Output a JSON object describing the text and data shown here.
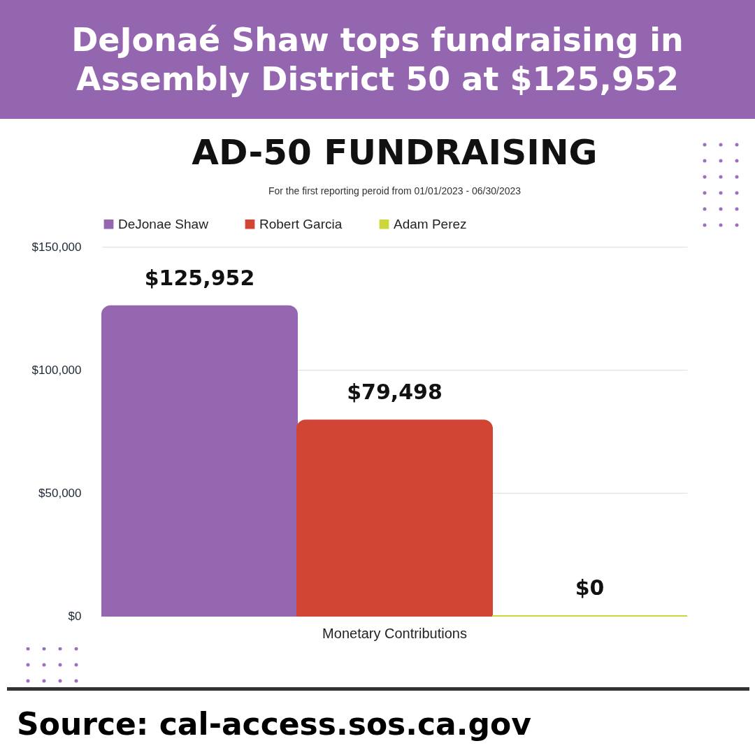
{
  "chart_data": {
    "type": "bar",
    "title": "AD-50 FUNDRAISING",
    "subtitle": "For the first reporting peroid from 01/01/2023 - 06/30/2023",
    "annotations": [
      "DeJonaé Shaw tops fundraising in Assembly District 50 at $125,952",
      "Source: cal-access.sos.ca.gov"
    ],
    "categories": [
      "Monetary Contributions"
    ],
    "series": [
      {
        "name": "DeJonae Shaw",
        "color": "#9467b0",
        "values": [
          125952
        ],
        "value_labels": [
          "$125,952"
        ]
      },
      {
        "name": "Robert Garcia",
        "color": "#d14535",
        "values": [
          79498
        ],
        "value_labels": [
          "$79,498"
        ]
      },
      {
        "name": "Adam Perez",
        "color": "#cdd63a",
        "values": [
          0
        ],
        "value_labels": [
          "$0"
        ]
      }
    ],
    "ylim": [
      0,
      150000
    ],
    "yticks": [
      {
        "value": 0,
        "label": "$0"
      },
      {
        "value": 50000,
        "label": "$50,000"
      },
      {
        "value": 100000,
        "label": "$100,000"
      },
      {
        "value": 150000,
        "label": "$150,000"
      }
    ],
    "grid": "y",
    "legend": "top"
  }
}
